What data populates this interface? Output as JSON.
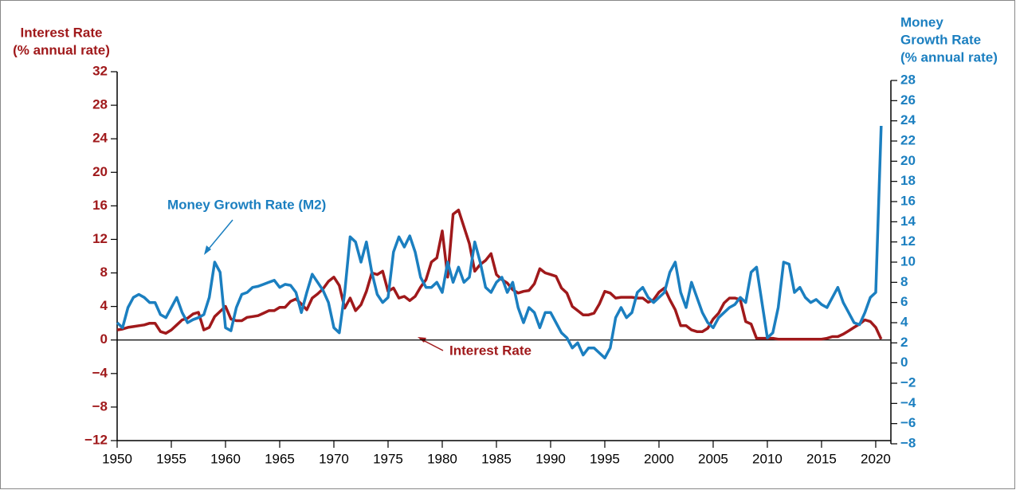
{
  "chart_data": {
    "type": "line",
    "y_label": [
      "Interest Rate",
      "(% annual rate)"
    ],
    "y2_label": [
      "Money",
      "Growth Rate",
      "(% annual rate)"
    ],
    "annotations": [
      "Money Growth Rate (M2)",
      "Interest Rate"
    ],
    "xlim": [
      1950,
      2021.4
    ],
    "xticks": [
      1950,
      1955,
      1960,
      1965,
      1970,
      1975,
      1980,
      1985,
      1990,
      1995,
      2000,
      2005,
      2010,
      2015,
      2020
    ],
    "ylim": [
      -12,
      32
    ],
    "yticks": [
      {
        "value": -12,
        "label": "−12"
      },
      {
        "value": -8,
        "label": "−8"
      },
      {
        "value": -4,
        "label": "−4"
      },
      0,
      4,
      8,
      12,
      16,
      20,
      24,
      28,
      32
    ],
    "y2lim": [
      -8,
      28
    ],
    "y2ticks": [
      {
        "value": -8,
        "label": "−8"
      },
      {
        "value": -6,
        "label": "−6"
      },
      {
        "value": -4,
        "label": "−4"
      },
      {
        "value": -2,
        "label": "−2"
      },
      0,
      2,
      4,
      6,
      8,
      10,
      12,
      14,
      16,
      18,
      20,
      22,
      24,
      26,
      28
    ],
    "x": [
      1950,
      1950.5,
      1951,
      1951.5,
      1952,
      1952.5,
      1953,
      1953.5,
      1954,
      1954.5,
      1955,
      1955.5,
      1956,
      1956.5,
      1957,
      1957.5,
      1958,
      1958.5,
      1959,
      1959.5,
      1960,
      1960.5,
      1961,
      1961.5,
      1962,
      1962.5,
      1963,
      1963.5,
      1964,
      1964.5,
      1965,
      1965.5,
      1966,
      1966.5,
      1967,
      1967.5,
      1968,
      1968.5,
      1969,
      1969.5,
      1970,
      1970.5,
      1971,
      1971.5,
      1972,
      1972.5,
      1973,
      1973.5,
      1974,
      1974.5,
      1975,
      1975.5,
      1976,
      1976.5,
      1977,
      1977.5,
      1978,
      1978.5,
      1979,
      1979.5,
      1980,
      1980.5,
      1981,
      1981.5,
      1982,
      1982.5,
      1983,
      1983.5,
      1984,
      1984.5,
      1985,
      1985.5,
      1986,
      1986.5,
      1987,
      1987.5,
      1988,
      1988.5,
      1989,
      1989.5,
      1990,
      1990.5,
      1991,
      1991.5,
      1992,
      1992.5,
      1993,
      1993.5,
      1994,
      1994.5,
      1995,
      1995.5,
      1996,
      1996.5,
      1997,
      1997.5,
      1998,
      1998.5,
      1999,
      1999.5,
      2000,
      2000.5,
      2001,
      2001.5,
      2002,
      2002.5,
      2003,
      2003.5,
      2004,
      2004.5,
      2005,
      2005.5,
      2006,
      2006.5,
      2007,
      2007.5,
      2008,
      2008.5,
      2009,
      2009.5,
      2010,
      2010.5,
      2011,
      2011.5,
      2012,
      2012.5,
      2013,
      2013.5,
      2014,
      2014.5,
      2015,
      2015.5,
      2016,
      2016.5,
      2017,
      2017.5,
      2018,
      2018.5,
      2019,
      2019.5,
      2020,
      2020.5
    ],
    "series": [
      {
        "name": "Interest Rate",
        "color": "#a0191b",
        "axis": "y",
        "values": [
          1.2,
          1.3,
          1.5,
          1.6,
          1.7,
          1.8,
          2.0,
          2.0,
          1.0,
          0.8,
          1.2,
          1.8,
          2.4,
          2.6,
          3.1,
          3.3,
          1.2,
          1.5,
          2.8,
          3.4,
          4.0,
          2.5,
          2.3,
          2.3,
          2.7,
          2.8,
          2.9,
          3.2,
          3.5,
          3.5,
          3.9,
          3.9,
          4.6,
          4.9,
          4.3,
          3.6,
          5.0,
          5.5,
          6.1,
          7.0,
          7.5,
          6.5,
          3.8,
          5.0,
          3.5,
          4.2,
          5.8,
          8.0,
          7.8,
          8.2,
          5.8,
          6.2,
          5.0,
          5.2,
          4.7,
          5.2,
          6.3,
          7.2,
          9.3,
          9.8,
          13.0,
          7.5,
          15.0,
          15.5,
          13.5,
          11.5,
          8.2,
          9.0,
          9.5,
          10.3,
          7.8,
          7.2,
          6.8,
          6.0,
          5.6,
          5.8,
          5.9,
          6.7,
          8.5,
          8.0,
          7.8,
          7.6,
          6.2,
          5.6,
          4.0,
          3.5,
          3.0,
          3.0,
          3.2,
          4.3,
          5.8,
          5.6,
          5.0,
          5.1,
          5.1,
          5.1,
          5.0,
          5.0,
          4.5,
          4.8,
          5.7,
          6.2,
          4.8,
          3.6,
          1.7,
          1.7,
          1.2,
          1.0,
          1.0,
          1.4,
          2.5,
          3.2,
          4.4,
          5.0,
          5.0,
          4.8,
          2.2,
          1.9,
          0.2,
          0.2,
          0.2,
          0.2,
          0.1,
          0.1,
          0.1,
          0.1,
          0.1,
          0.1,
          0.1,
          0.1,
          0.1,
          0.2,
          0.4,
          0.4,
          0.7,
          1.1,
          1.5,
          1.9,
          2.4,
          2.2,
          1.5,
          0.1
        ]
      },
      {
        "name": "Money Growth Rate (M2)",
        "color": "#1b7fc0",
        "axis": "y2",
        "values": [
          4.0,
          3.5,
          5.5,
          6.5,
          6.8,
          6.5,
          6.0,
          6.0,
          4.8,
          4.5,
          5.5,
          6.5,
          5.0,
          4.0,
          4.3,
          4.5,
          4.8,
          6.5,
          10.0,
          9.0,
          3.5,
          3.2,
          5.5,
          6.8,
          7.0,
          7.5,
          7.6,
          7.8,
          8.0,
          8.2,
          7.5,
          7.8,
          7.7,
          7.0,
          5.0,
          7.0,
          8.8,
          8.0,
          7.2,
          6.0,
          3.5,
          3.0,
          7.0,
          12.5,
          12.0,
          10.0,
          12.0,
          9.0,
          6.8,
          6.0,
          6.5,
          11.0,
          12.5,
          11.5,
          12.6,
          11.0,
          8.5,
          7.5,
          7.5,
          8.0,
          7.0,
          10.0,
          8.0,
          9.5,
          8.0,
          8.5,
          12.0,
          10.0,
          7.5,
          7.0,
          8.0,
          8.5,
          7.0,
          8.0,
          5.5,
          4.0,
          5.5,
          5.0,
          3.5,
          5.0,
          5.0,
          4.0,
          3.0,
          2.5,
          1.5,
          2.0,
          0.8,
          1.5,
          1.5,
          1.0,
          0.5,
          1.5,
          4.5,
          5.5,
          4.5,
          5.0,
          7.0,
          7.5,
          6.5,
          6.0,
          6.5,
          7.0,
          9.0,
          10.0,
          7.0,
          5.5,
          8.0,
          6.5,
          5.0,
          4.0,
          3.5,
          4.5,
          5.0,
          5.5,
          5.8,
          6.5,
          6.0,
          9.0,
          9.5,
          6.0,
          2.5,
          3.0,
          5.5,
          10.0,
          9.8,
          7.0,
          7.5,
          6.5,
          6.0,
          6.3,
          5.8,
          5.5,
          6.5,
          7.5,
          6.0,
          5.0,
          4.0,
          3.8,
          5.0,
          6.5,
          7.0,
          23.5
        ]
      }
    ]
  }
}
